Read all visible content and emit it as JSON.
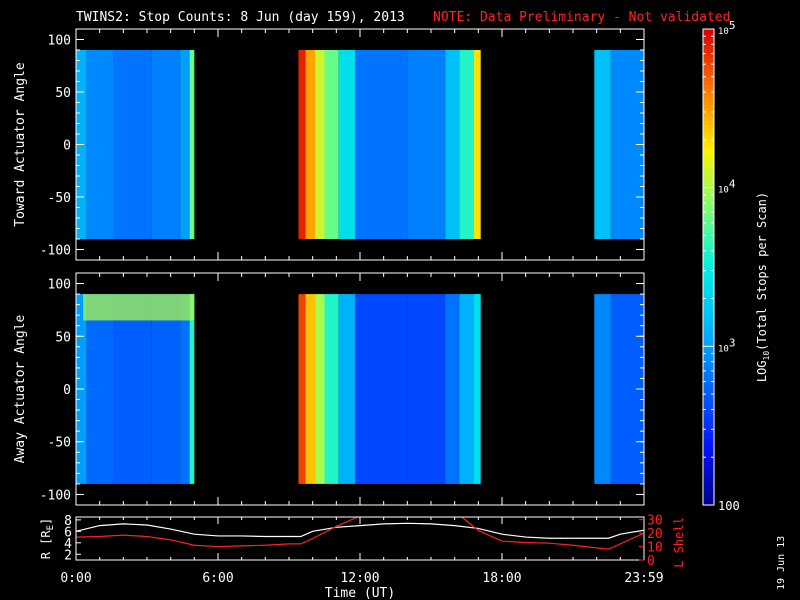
{
  "title": {
    "main": "TWINS2: Stop Counts:  8 Jun (day 159), 2013",
    "note": "NOTE: Data Preliminary - Not validated"
  },
  "date_stamp": "19 Jun 13",
  "colors": {
    "background": "#000000",
    "note": "#ff2020",
    "r_line": "#ffffff",
    "lshell_line": "#ff2020"
  },
  "chart_data": [
    {
      "type": "heatmap",
      "title": "",
      "ylabel": "Toward Actuator Angle",
      "xlabel": "",
      "x_range_hours": [
        0,
        24
      ],
      "ylim": [
        -110,
        110
      ],
      "yticks": [
        "100",
        "50",
        "0",
        "-50",
        "-100"
      ],
      "data_y_range": [
        -90,
        90
      ],
      "data_intervals_hours": [
        [
          0,
          5
        ],
        [
          9.4,
          17.1
        ],
        [
          21.9,
          24
        ]
      ],
      "columns": [
        {
          "start": 0.0,
          "end": 0.45,
          "log10_counts": 3.1
        },
        {
          "start": 0.45,
          "end": 1.6,
          "log10_counts": 2.9
        },
        {
          "start": 1.6,
          "end": 3.2,
          "log10_counts": 2.8
        },
        {
          "start": 3.2,
          "end": 4.4,
          "log10_counts": 2.85
        },
        {
          "start": 4.4,
          "end": 4.8,
          "log10_counts": 3.0
        },
        {
          "start": 4.8,
          "end": 5.0,
          "log10_counts": 3.8
        },
        {
          "start": 9.4,
          "end": 9.7,
          "log10_counts": 4.9
        },
        {
          "start": 9.7,
          "end": 10.1,
          "log10_counts": 4.5
        },
        {
          "start": 10.1,
          "end": 10.5,
          "log10_counts": 4.1
        },
        {
          "start": 10.5,
          "end": 11.1,
          "log10_counts": 3.8
        },
        {
          "start": 11.1,
          "end": 11.8,
          "log10_counts": 3.4
        },
        {
          "start": 11.8,
          "end": 14.0,
          "log10_counts": 2.8
        },
        {
          "start": 14.0,
          "end": 15.6,
          "log10_counts": 2.85
        },
        {
          "start": 15.6,
          "end": 16.2,
          "log10_counts": 3.2
        },
        {
          "start": 16.2,
          "end": 16.8,
          "log10_counts": 3.6
        },
        {
          "start": 16.8,
          "end": 17.1,
          "log10_counts": 4.3
        },
        {
          "start": 21.9,
          "end": 22.6,
          "log10_counts": 3.2
        },
        {
          "start": 22.6,
          "end": 24.0,
          "log10_counts": 2.9
        }
      ]
    },
    {
      "type": "heatmap",
      "title": "",
      "ylabel": "Away Actuator Angle",
      "xlabel": "",
      "x_range_hours": [
        0,
        24
      ],
      "ylim": [
        -110,
        110
      ],
      "yticks": [
        "100",
        "50",
        "0",
        "-50",
        "-100"
      ],
      "data_y_range": [
        -90,
        90
      ],
      "data_intervals_hours": [
        [
          0,
          5
        ],
        [
          9.4,
          17.1
        ],
        [
          21.9,
          24
        ]
      ],
      "columns": [
        {
          "start": 0.0,
          "end": 0.45,
          "log10_counts": 3.0
        },
        {
          "start": 0.45,
          "end": 1.6,
          "log10_counts": 2.75
        },
        {
          "start": 1.6,
          "end": 3.2,
          "log10_counts": 2.7
        },
        {
          "start": 3.2,
          "end": 4.4,
          "log10_counts": 2.72
        },
        {
          "start": 4.4,
          "end": 4.8,
          "log10_counts": 2.8
        },
        {
          "start": 4.8,
          "end": 5.0,
          "log10_counts": 3.6
        },
        {
          "start": 9.4,
          "end": 9.7,
          "log10_counts": 4.8
        },
        {
          "start": 9.7,
          "end": 10.1,
          "log10_counts": 4.4
        },
        {
          "start": 10.1,
          "end": 10.5,
          "log10_counts": 4.0
        },
        {
          "start": 10.5,
          "end": 11.1,
          "log10_counts": 3.6
        },
        {
          "start": 11.1,
          "end": 11.8,
          "log10_counts": 3.1
        },
        {
          "start": 11.8,
          "end": 14.0,
          "log10_counts": 2.6
        },
        {
          "start": 14.0,
          "end": 15.6,
          "log10_counts": 2.6
        },
        {
          "start": 15.6,
          "end": 16.2,
          "log10_counts": 2.8
        },
        {
          "start": 16.2,
          "end": 16.8,
          "log10_counts": 3.1
        },
        {
          "start": 16.8,
          "end": 17.1,
          "log10_counts": 3.4
        },
        {
          "start": 21.9,
          "end": 22.6,
          "log10_counts": 2.9
        },
        {
          "start": 22.6,
          "end": 24.0,
          "log10_counts": 2.7
        }
      ],
      "hot_band": {
        "y_range": [
          65,
          90
        ],
        "x_range_hours": [
          0.3,
          5.0
        ],
        "log10_counts": 4.0
      }
    },
    {
      "type": "line",
      "title": "",
      "xlabel": "Time (UT)",
      "ylabel": "R [R",
      "ylabel_sub": "E",
      "ylabel_close": "]",
      "ylabel_right": "L Shell",
      "xlim": [
        0,
        24
      ],
      "ylim": [
        1,
        8.5
      ],
      "ylim_right": [
        0,
        32
      ],
      "xticks": [
        "0:00",
        "6:00",
        "12:00",
        "18:00",
        "23:59"
      ],
      "yticks_left": [
        "8",
        "6",
        "4",
        "2"
      ],
      "yticks_right": [
        "30",
        "20",
        "10",
        "0"
      ],
      "series": [
        {
          "axis": "left",
          "x": [
            0,
            1,
            2,
            3,
            4,
            5,
            6,
            7,
            8,
            9,
            9.5,
            10,
            11,
            12,
            13,
            14,
            15,
            16,
            17,
            18,
            19,
            20,
            21,
            22,
            22.5,
            23,
            24
          ],
          "values": [
            6.0,
            7.0,
            7.3,
            7.1,
            6.4,
            5.5,
            5.2,
            5.2,
            5.1,
            5.1,
            5.1,
            6.0,
            6.7,
            7.0,
            7.3,
            7.4,
            7.3,
            7.0,
            6.5,
            5.5,
            5.0,
            4.8,
            4.8,
            4.8,
            4.8,
            5.5,
            6.2
          ]
        },
        {
          "axis": "right",
          "x": [
            0,
            1,
            2,
            3,
            4,
            5,
            6,
            7,
            8,
            9,
            9.5,
            10,
            11,
            11.9,
            16.3,
            17,
            18,
            19,
            20,
            21,
            22,
            22.5,
            23,
            24
          ],
          "values": [
            17,
            17.5,
            18.5,
            17.5,
            15,
            11,
            10,
            10.5,
            11,
            12,
            12,
            16,
            25,
            32,
            32,
            22,
            14,
            13,
            12.5,
            11,
            9,
            8,
            12,
            20
          ]
        }
      ]
    }
  ],
  "colorbar": {
    "label_prefix": "LOG",
    "label_sub": "10",
    "label_suffix": "(Total Stops per Scan)",
    "range_log10": [
      2,
      5
    ],
    "ticks": [
      {
        "value": 5,
        "base": "10",
        "exp": "5"
      },
      {
        "value": 4,
        "base": "10",
        "exp": "4"
      },
      {
        "value": 3,
        "base": "10",
        "exp": "3"
      },
      {
        "value": 2,
        "base": "",
        "exp": "",
        "text": "100"
      }
    ]
  }
}
